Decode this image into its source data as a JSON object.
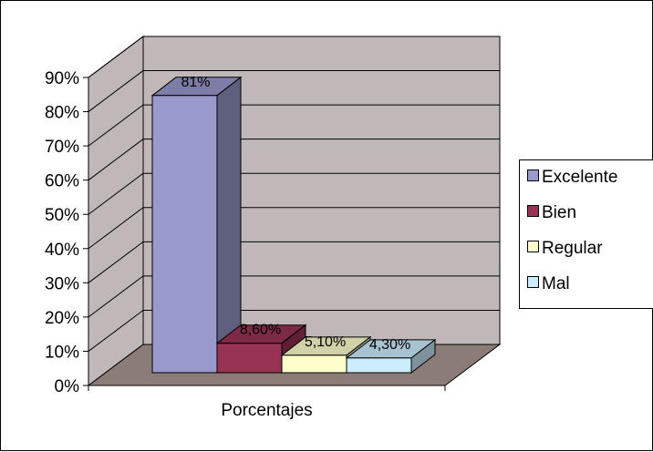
{
  "chart_data": {
    "type": "bar",
    "categories": [
      "Porcentajes"
    ],
    "series": [
      {
        "name": "Excelente",
        "values": [
          81
        ],
        "label": "81%",
        "color": "#9999cc"
      },
      {
        "name": "Bien",
        "values": [
          8.6
        ],
        "label": "8,60%",
        "color": "#993355"
      },
      {
        "name": "Regular",
        "values": [
          5.1
        ],
        "label": "5,10%",
        "color": "#ffffcc"
      },
      {
        "name": "Mal",
        "values": [
          4.3
        ],
        "label": "4,30%",
        "color": "#ccecff"
      }
    ],
    "yticks": [
      "0%",
      "10%",
      "20%",
      "30%",
      "40%",
      "50%",
      "60%",
      "70%",
      "80%",
      "90%"
    ],
    "ylim": [
      0,
      90
    ],
    "grid": true,
    "three_d": true,
    "legend_position": "right",
    "wall_color": "#c0b8b8",
    "floor_color": "#8c7c78"
  }
}
